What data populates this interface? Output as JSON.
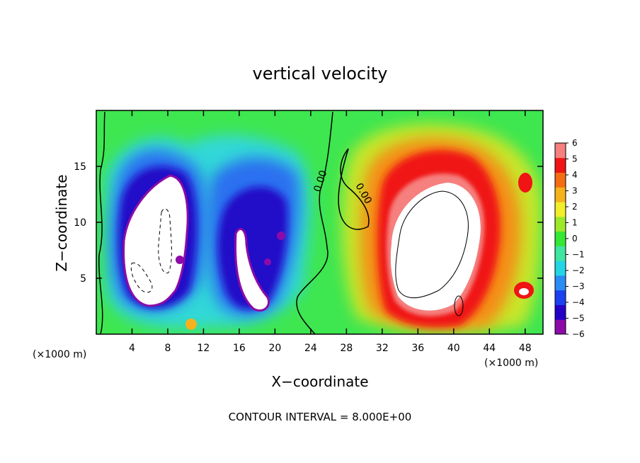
{
  "chart_data": {
    "type": "heatmap",
    "title": "vertical velocity",
    "xlabel": "X−coordinate",
    "ylabel": "Z−coordinate",
    "x_unit_left": "(×1000 m)",
    "x_unit_right": "(×1000 m)",
    "xlim": [
      0,
      50
    ],
    "ylim": [
      0,
      20
    ],
    "xticks": [
      4,
      8,
      12,
      16,
      20,
      24,
      28,
      32,
      36,
      40,
      44,
      48
    ],
    "yticks": [
      5,
      10,
      15
    ],
    "footer": "CONTOUR INTERVAL = 8.000E+00",
    "contour_labels": [
      "0.00",
      "0.00"
    ],
    "colorbar": {
      "ticks": [
        "6",
        "5",
        "4",
        "3",
        "2",
        "1",
        "0",
        "−1",
        "−2",
        "−3",
        "−4",
        "−5",
        "−6"
      ],
      "range": [
        -6,
        6
      ],
      "colors": [
        "#8c0ba8",
        "#2400c8",
        "#1a40f0",
        "#2a8cf5",
        "#23d6e6",
        "#3ee6a0",
        "#34e834",
        "#9ce82a",
        "#f2ee2a",
        "#f5b21c",
        "#f56d12",
        "#f01414",
        "#f5807e"
      ]
    },
    "features": [
      {
        "name": "downdraft-core-left",
        "x": 7.5,
        "z": 9,
        "value": -6
      },
      {
        "name": "downdraft-core-mid",
        "x": 18.5,
        "z": 6,
        "value": -6
      },
      {
        "name": "updraft-core",
        "x": 38,
        "z": 9,
        "value": 6
      }
    ]
  }
}
